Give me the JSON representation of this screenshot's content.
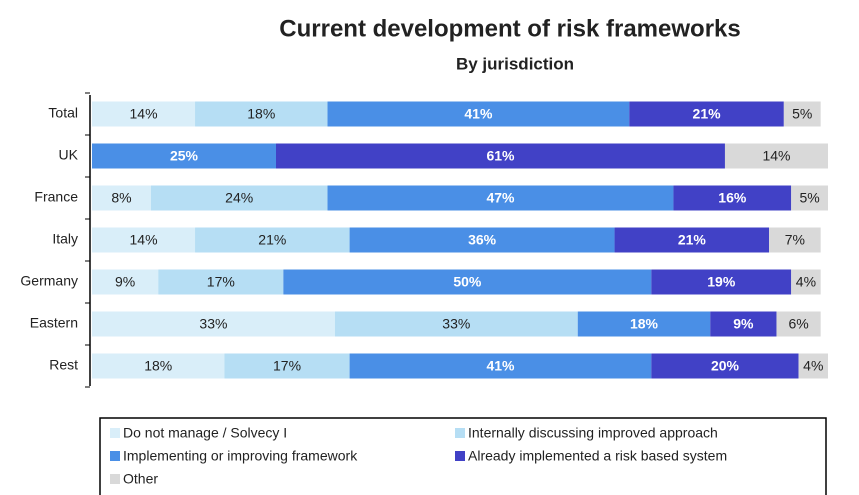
{
  "chart_data": {
    "type": "stacked_bar_horizontal",
    "title": "Current development of risk frameworks",
    "subtitle": "By jurisdiction",
    "categories": [
      "Total",
      "UK",
      "France",
      "Italy",
      "Germany",
      "Eastern",
      "Rest"
    ],
    "xlim": [
      0,
      100
    ],
    "legend": "bottom",
    "series": [
      {
        "name": "Do not manage / Solvecy I",
        "color": "#d9eef9",
        "label_color": "#222222",
        "values": [
          14,
          0,
          8,
          14,
          9,
          33,
          18
        ],
        "value_labels": [
          "14%",
          null,
          "8%",
          "14%",
          "9%",
          "33%",
          "18%"
        ]
      },
      {
        "name": "Internally discussing improved approach",
        "color": "#b6def4",
        "label_color": "#222222",
        "values": [
          18,
          0,
          24,
          21,
          17,
          33,
          17
        ],
        "value_labels": [
          "18%",
          null,
          "24%",
          "21%",
          "17%",
          "33%",
          "17%"
        ]
      },
      {
        "name": "Implementing or improving framework",
        "color": "#4a8fe6",
        "label_color": "#ffffff",
        "values": [
          41,
          25,
          47,
          36,
          50,
          18,
          41
        ],
        "value_labels": [
          "41%",
          "25%",
          "47%",
          "36%",
          "50%",
          "18%",
          "41%"
        ]
      },
      {
        "name": "Already implemented a risk based system",
        "color": "#4141c6",
        "label_color": "#ffffff",
        "values": [
          21,
          61,
          16,
          21,
          19,
          9,
          20
        ],
        "value_labels": [
          "21%",
          "61%",
          "16%",
          "21%",
          "19%",
          "9%",
          "20%"
        ]
      },
      {
        "name": "Other",
        "color": "#d9d9d9",
        "label_color": "#222222",
        "values": [
          5,
          14,
          5,
          7,
          4,
          6,
          4
        ],
        "value_labels": [
          "5%",
          "14%",
          "5%",
          "7%",
          "4%",
          "6%",
          "4%"
        ]
      }
    ]
  }
}
